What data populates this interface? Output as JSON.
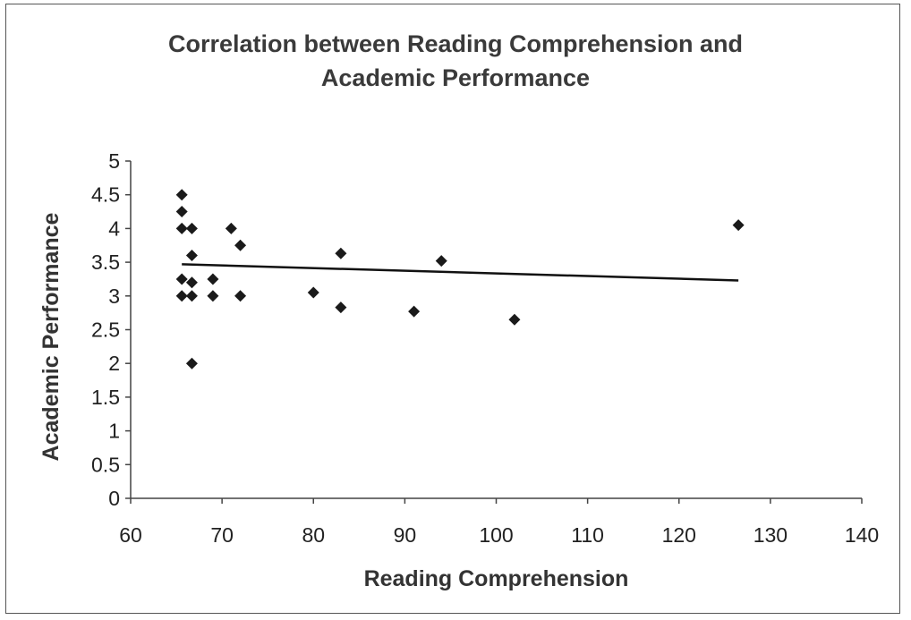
{
  "chart_data": {
    "type": "scatter",
    "title": [
      "Correlation between Reading Comprehension and",
      "Academic Performance"
    ],
    "xlabel": "Reading Comprehension",
    "ylabel": "Academic Performance",
    "xlim": [
      60,
      140
    ],
    "ylim": [
      0,
      5
    ],
    "xticks": [
      "60",
      "70",
      "80",
      "90",
      "100",
      "110",
      "120",
      "130",
      "140"
    ],
    "yticks": [
      "0",
      "0.5",
      "1",
      "1.5",
      "2",
      "2.5",
      "3",
      "3.5",
      "4",
      "4.5",
      "5"
    ],
    "grid": false,
    "legend": "none",
    "marker_color": "#1a1a1a",
    "trendline_color": "#111111",
    "points": [
      {
        "x": 65.6,
        "y": 4.5
      },
      {
        "x": 65.6,
        "y": 4.25
      },
      {
        "x": 65.6,
        "y": 4.0
      },
      {
        "x": 65.6,
        "y": 3.25
      },
      {
        "x": 65.6,
        "y": 3.0
      },
      {
        "x": 66.7,
        "y": 4.0
      },
      {
        "x": 66.7,
        "y": 3.6
      },
      {
        "x": 66.7,
        "y": 3.2
      },
      {
        "x": 66.7,
        "y": 3.0
      },
      {
        "x": 66.7,
        "y": 2.0
      },
      {
        "x": 69.0,
        "y": 3.25
      },
      {
        "x": 69.0,
        "y": 3.0
      },
      {
        "x": 71.0,
        "y": 4.0
      },
      {
        "x": 72.0,
        "y": 3.75
      },
      {
        "x": 72.0,
        "y": 3.0
      },
      {
        "x": 80.0,
        "y": 3.05
      },
      {
        "x": 83.0,
        "y": 3.63
      },
      {
        "x": 83.0,
        "y": 2.83
      },
      {
        "x": 91.0,
        "y": 2.77
      },
      {
        "x": 94.0,
        "y": 3.52
      },
      {
        "x": 102.0,
        "y": 2.65
      },
      {
        "x": 126.5,
        "y": 4.05
      }
    ],
    "trendline": {
      "x": [
        65.6,
        126.5
      ],
      "y": [
        3.47,
        3.23
      ]
    }
  }
}
